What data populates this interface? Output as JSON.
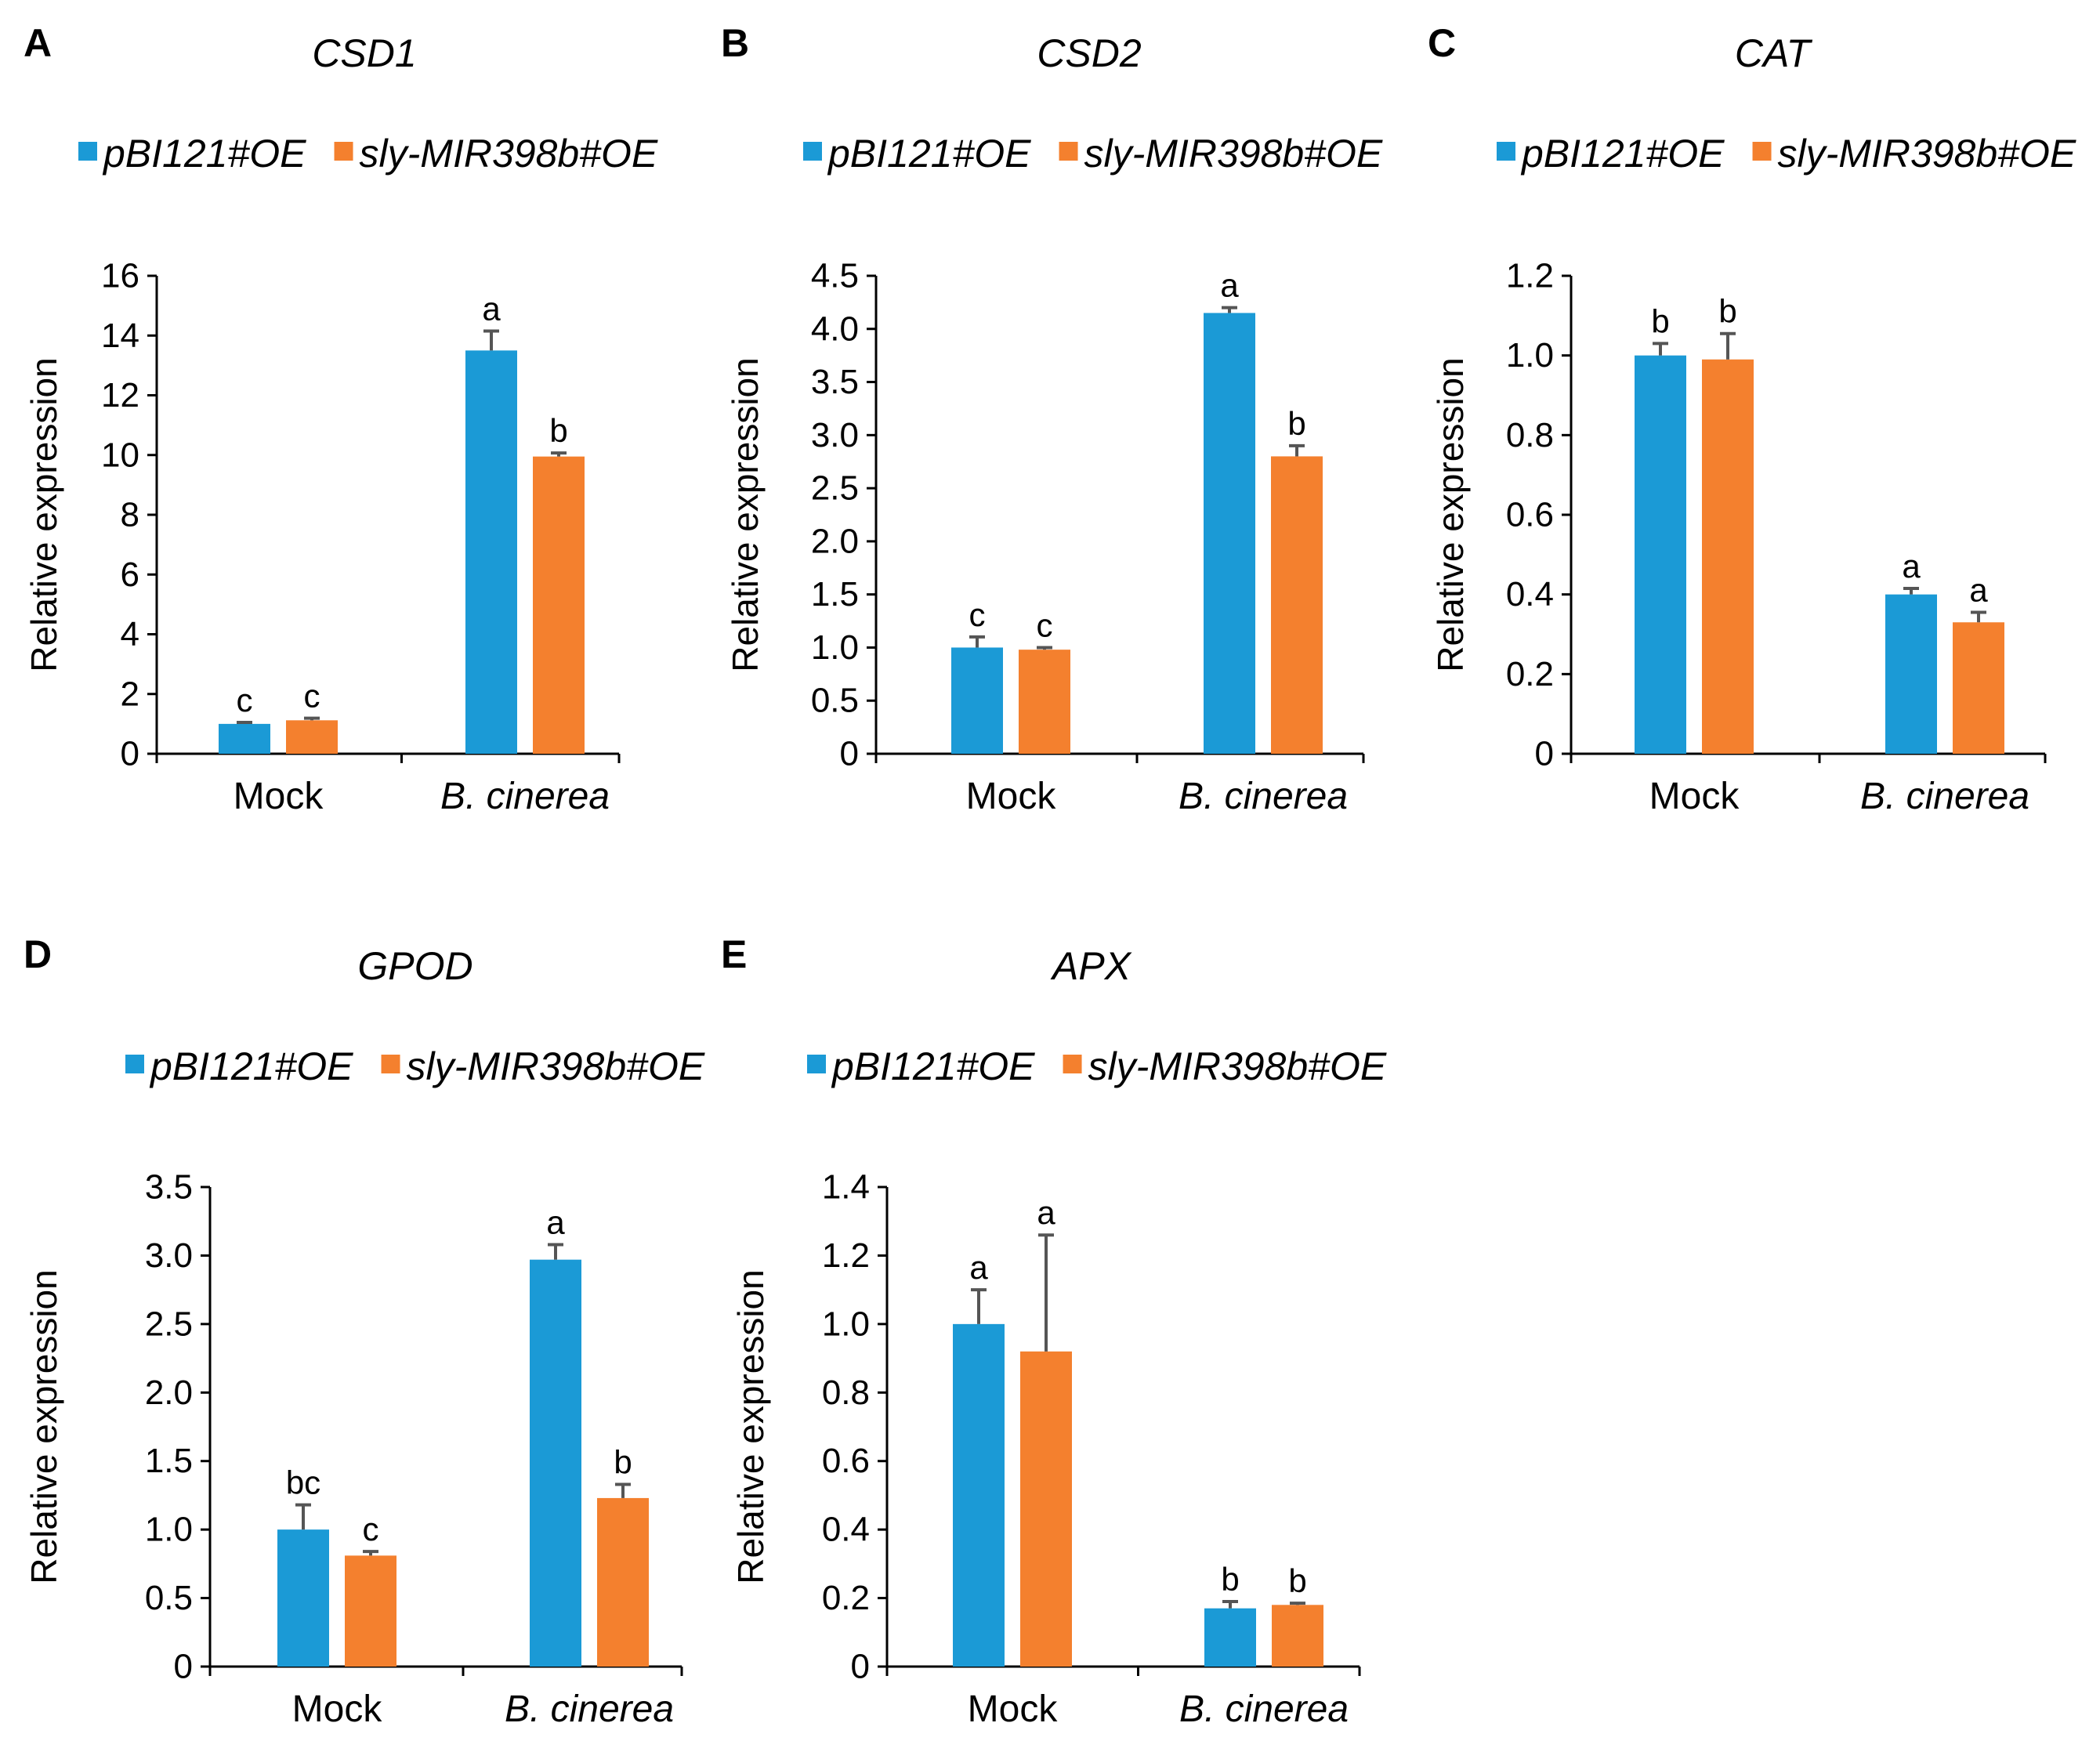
{
  "colors": {
    "series1": "#1b9ad6",
    "series2": "#f4802e",
    "axis": "#000000",
    "error": "#555555"
  },
  "chart_data": [
    {
      "id": "A",
      "type": "bar",
      "title": "CSD1",
      "ylabel": "Relative expression",
      "categories": [
        "Mock",
        "B. cinerea"
      ],
      "category_italic": [
        false,
        true
      ],
      "series": [
        {
          "name": "pBI121#OE",
          "values": [
            1.0,
            13.5
          ],
          "errors": [
            0.05,
            0.65
          ],
          "letters": [
            "c",
            "a"
          ]
        },
        {
          "name": "sly-MIR398b#OE",
          "values": [
            1.12,
            9.95
          ],
          "errors": [
            0.07,
            0.12
          ],
          "letters": [
            "c",
            "b"
          ]
        }
      ],
      "ylim": [
        0,
        16
      ],
      "yticks": [
        0,
        2,
        4,
        6,
        8,
        10,
        12,
        14,
        16
      ],
      "ytick_labels": [
        "0",
        "2",
        "4",
        "6",
        "8",
        "10",
        "12",
        "14",
        "16"
      ],
      "legend": "top"
    },
    {
      "id": "B",
      "type": "bar",
      "title": "CSD2",
      "ylabel": "Relative expression",
      "categories": [
        "Mock",
        "B. cinerea"
      ],
      "category_italic": [
        false,
        true
      ],
      "series": [
        {
          "name": "pBI121#OE",
          "values": [
            1.0,
            4.15
          ],
          "errors": [
            0.1,
            0.05
          ],
          "letters": [
            "c",
            "a"
          ]
        },
        {
          "name": "sly-MIR398b#OE",
          "values": [
            0.98,
            2.8
          ],
          "errors": [
            0.02,
            0.1
          ],
          "letters": [
            "c",
            "b"
          ]
        }
      ],
      "ylim": [
        0,
        4.5
      ],
      "yticks": [
        0,
        0.5,
        1.0,
        1.5,
        2.0,
        2.5,
        3.0,
        3.5,
        4.0,
        4.5
      ],
      "ytick_labels": [
        "0",
        "0.5",
        "1.0",
        "1.5",
        "2.0",
        "2.5",
        "3.0",
        "3.5",
        "4.0",
        "4.5"
      ],
      "legend": "top"
    },
    {
      "id": "C",
      "type": "bar",
      "title": "CAT",
      "ylabel": "Relative expression",
      "categories": [
        "Mock",
        "B. cinerea"
      ],
      "category_italic": [
        false,
        true
      ],
      "series": [
        {
          "name": "pBI121#OE",
          "values": [
            1.0,
            0.4
          ],
          "errors": [
            0.03,
            0.015
          ],
          "letters": [
            "b",
            "a"
          ]
        },
        {
          "name": "sly-MIR398b#OE",
          "values": [
            0.99,
            0.33
          ],
          "errors": [
            0.065,
            0.025
          ],
          "letters": [
            "b",
            "a"
          ]
        }
      ],
      "ylim": [
        0,
        1.2
      ],
      "yticks": [
        0,
        0.2,
        0.4,
        0.6,
        0.8,
        1.0,
        1.2
      ],
      "ytick_labels": [
        "0",
        "0.2",
        "0.4",
        "0.6",
        "0.8",
        "1.0",
        "1.2"
      ],
      "legend": "top"
    },
    {
      "id": "D",
      "type": "bar",
      "title": "GPOD",
      "ylabel": "Relative expression",
      "categories": [
        "Mock",
        "B. cinerea"
      ],
      "category_italic": [
        false,
        true
      ],
      "series": [
        {
          "name": "pBI121#OE",
          "values": [
            1.0,
            2.97
          ],
          "errors": [
            0.18,
            0.11
          ],
          "letters": [
            "bc",
            "a"
          ]
        },
        {
          "name": "sly-MIR398b#OE",
          "values": [
            0.81,
            1.23
          ],
          "errors": [
            0.03,
            0.1
          ],
          "letters": [
            "c",
            "b"
          ]
        }
      ],
      "ylim": [
        0,
        3.5
      ],
      "yticks": [
        0,
        0.5,
        1.0,
        1.5,
        2.0,
        2.5,
        3.0,
        3.5
      ],
      "ytick_labels": [
        "0",
        "0.5",
        "1.0",
        "1.5",
        "2.0",
        "2.5",
        "3.0",
        "3.5"
      ],
      "legend": "top"
    },
    {
      "id": "E",
      "type": "bar",
      "title": "APX",
      "ylabel": "Relative expression",
      "categories": [
        "Mock",
        "B. cinerea"
      ],
      "category_italic": [
        false,
        true
      ],
      "series": [
        {
          "name": "pBI121#OE",
          "values": [
            1.0,
            0.17
          ],
          "errors": [
            0.1,
            0.02
          ],
          "letters": [
            "a",
            "b"
          ]
        },
        {
          "name": "sly-MIR398b#OE",
          "values": [
            0.92,
            0.18
          ],
          "errors": [
            0.34,
            0.005
          ],
          "letters": [
            "a",
            "b"
          ]
        }
      ],
      "ylim": [
        0,
        1.4
      ],
      "yticks": [
        0,
        0.2,
        0.4,
        0.6,
        0.8,
        1.0,
        1.2,
        1.4
      ],
      "ytick_labels": [
        "0",
        "0.2",
        "0.4",
        "0.6",
        "0.8",
        "1.0",
        "1.2",
        "1.4"
      ],
      "legend": "top"
    }
  ]
}
